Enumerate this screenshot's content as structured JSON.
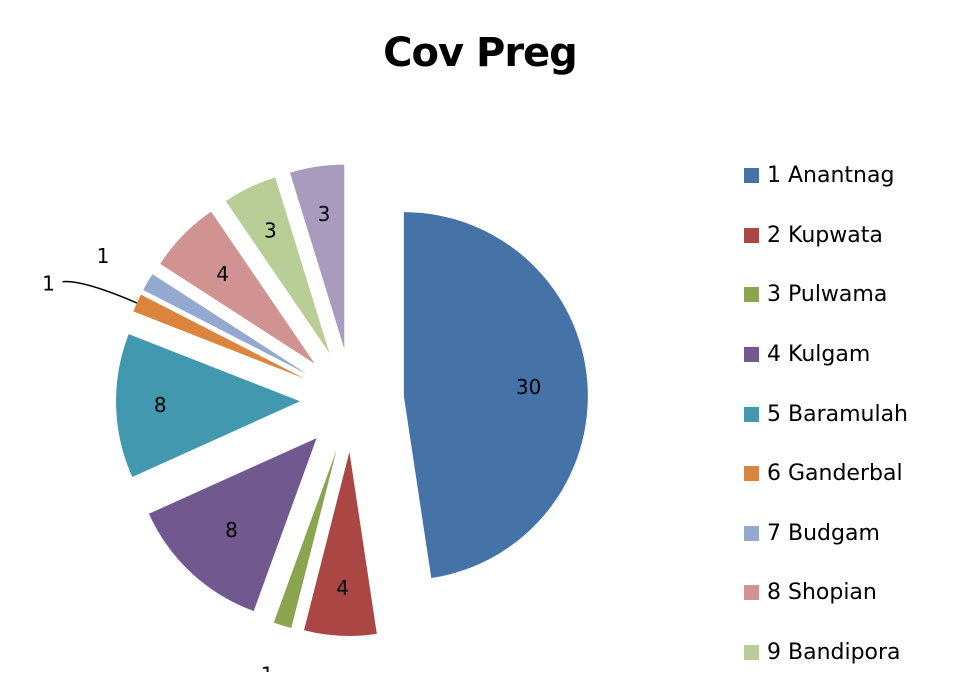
{
  "chart_data": {
    "type": "pie",
    "title": "Cov Preg",
    "slices": [
      {
        "name": "1 Anantnag",
        "value": 30,
        "color": "#4572A7"
      },
      {
        "name": "2 Kupwata",
        "value": 4,
        "color": "#AA4643"
      },
      {
        "name": "3 Pulwama",
        "value": 1,
        "color": "#89A54E"
      },
      {
        "name": "4 Kulgam",
        "value": 8,
        "color": "#71588F"
      },
      {
        "name": "5 Baramulah",
        "value": 8,
        "color": "#4198AF"
      },
      {
        "name": "6 Ganderbal",
        "value": 1,
        "color": "#DB843D"
      },
      {
        "name": "7 Budgam",
        "value": 1,
        "color": "#93A9CF"
      },
      {
        "name": "8 Shopian",
        "value": 4,
        "color": "#D19392"
      },
      {
        "name": "9 Bandipora",
        "value": 3,
        "color": "#B9CD96"
      },
      {
        "name": "",
        "value": 3,
        "color": "#A99BBD"
      }
    ],
    "legend_position": "right",
    "data_labels": true,
    "exploded": true
  }
}
